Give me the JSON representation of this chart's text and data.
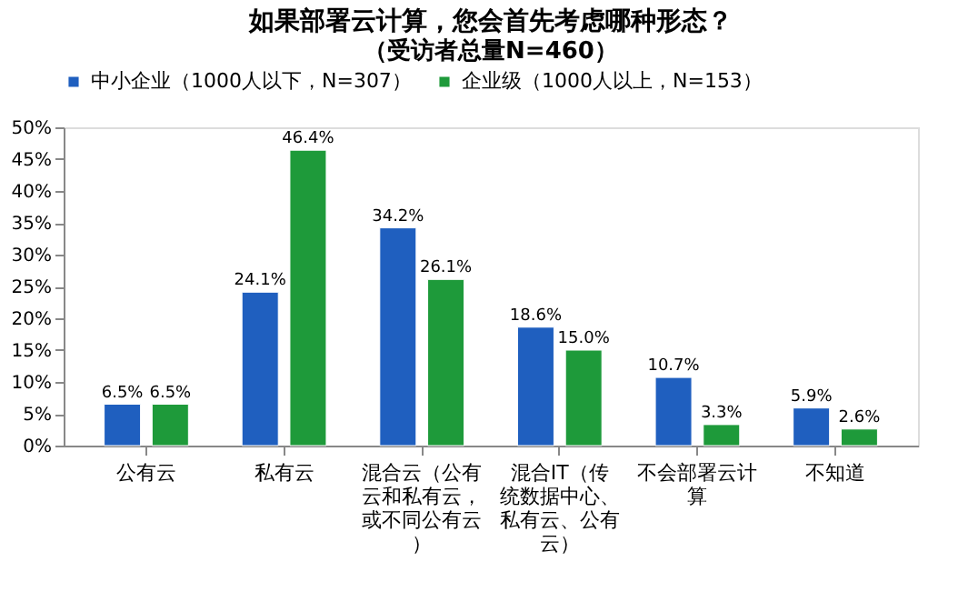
{
  "chart_data": {
    "type": "bar",
    "title": "如果部署云计算，您会首先考虑哪种形态？",
    "subtitle": "（受访者总量N=460）",
    "categories": [
      "公有云",
      "私有云",
      "混合云（公有云和私有云，或不同公有云）",
      "混合IT（传统数据中心、私有云、公有云）",
      "不会部署云计算",
      "不知道"
    ],
    "series": [
      {
        "name": "中小企业（1000人以下，N=307）",
        "color": "#1f5fbf",
        "values": [
          6.5,
          24.1,
          34.2,
          18.6,
          10.7,
          5.9
        ],
        "value_labels": [
          "6.5%",
          "24.1%",
          "34.2%",
          "18.6%",
          "10.7%",
          "5.9%"
        ]
      },
      {
        "name": "企业级（1000人以上，N=153）",
        "color": "#1e9a3a",
        "values": [
          6.5,
          46.4,
          26.1,
          15.0,
          3.3,
          2.6
        ],
        "value_labels": [
          "6.5%",
          "46.4%",
          "26.1%",
          "15.0%",
          "3.3%",
          "2.6%"
        ]
      }
    ],
    "ylim": [
      0,
      50
    ],
    "yticks": [
      {
        "value": 0,
        "label": "0%"
      },
      {
        "value": 5,
        "label": "5%"
      },
      {
        "value": 10,
        "label": "10%"
      },
      {
        "value": 15,
        "label": "15%"
      },
      {
        "value": 20,
        "label": "20%"
      },
      {
        "value": 25,
        "label": "25%"
      },
      {
        "value": 30,
        "label": "30%"
      },
      {
        "value": 35,
        "label": "35%"
      },
      {
        "value": 40,
        "label": "40%"
      },
      {
        "value": 45,
        "label": "45%"
      },
      {
        "value": 50,
        "label": "50%"
      }
    ],
    "legend": "top",
    "grid": false
  }
}
